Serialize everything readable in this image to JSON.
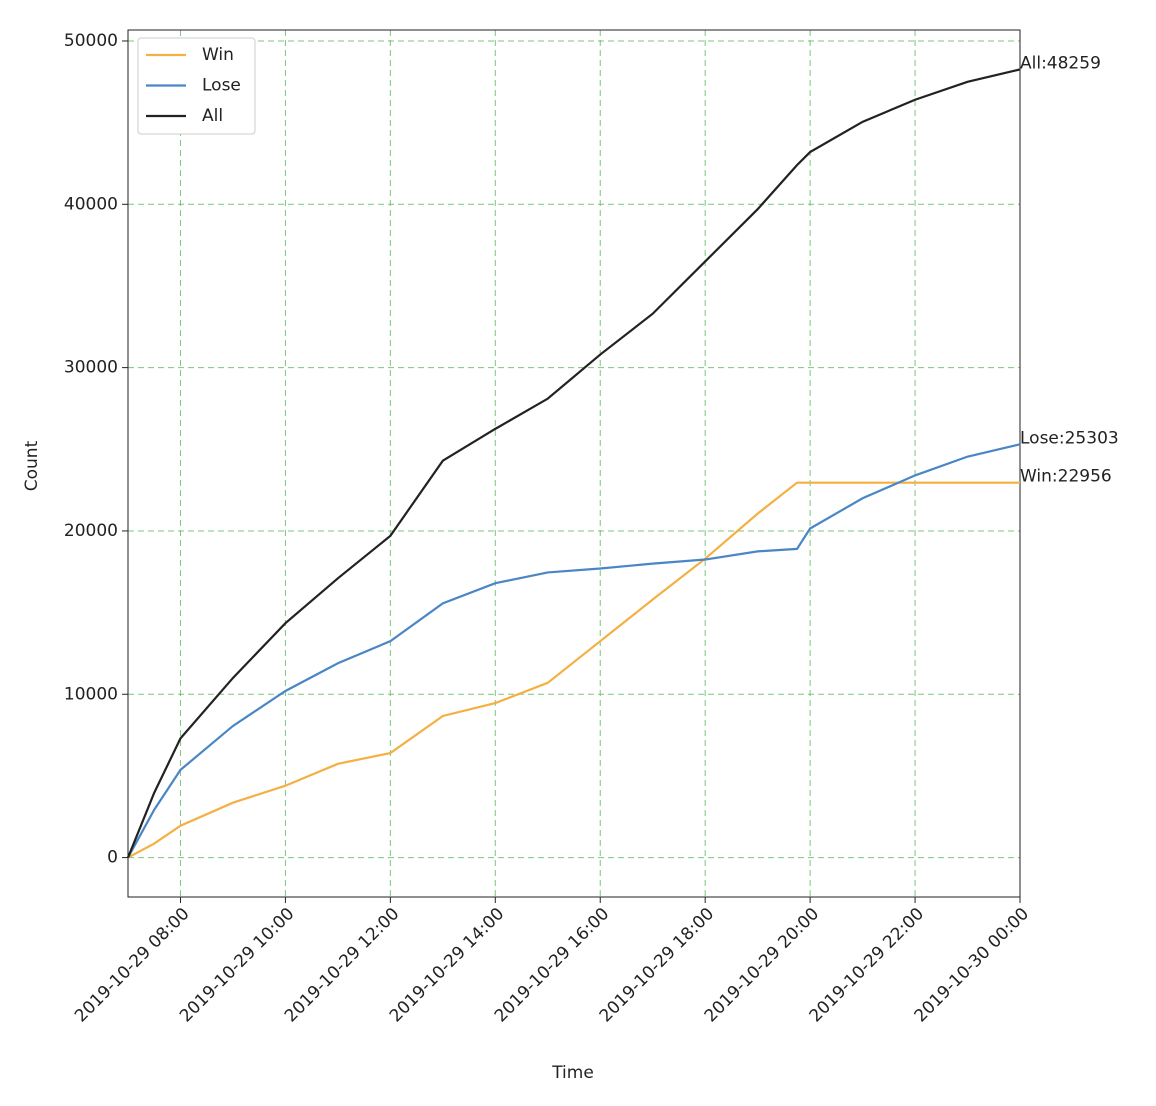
{
  "chart_data": {
    "type": "line",
    "x_label": "Time",
    "y_label": "Count",
    "x": [
      "2019-10-29 07:00",
      "2019-10-29 07:30",
      "2019-10-29 08:00",
      "2019-10-29 09:00",
      "2019-10-29 10:00",
      "2019-10-29 11:00",
      "2019-10-29 12:00",
      "2019-10-29 13:00",
      "2019-10-29 14:00",
      "2019-10-29 15:00",
      "2019-10-29 16:00",
      "2019-10-29 17:00",
      "2019-10-29 18:00",
      "2019-10-29 19:00",
      "2019-10-29 19:45",
      "2019-10-29 20:00",
      "2019-10-29 21:00",
      "2019-10-29 22:00",
      "2019-10-29 23:00",
      "2019-10-30 00:00"
    ],
    "series": [
      {
        "name": "Win",
        "color": "#f4b042",
        "values": [
          0,
          860,
          1950,
          3360,
          4400,
          5740,
          6400,
          8670,
          9460,
          10700,
          13250,
          15800,
          18300,
          21060,
          22956,
          22956,
          22956,
          22956,
          22956,
          22956
        ]
      },
      {
        "name": "Lose",
        "color": "#4a86c5",
        "values": [
          0,
          2930,
          5370,
          8060,
          10200,
          11900,
          13250,
          15570,
          16800,
          17460,
          17700,
          18000,
          18250,
          18750,
          18900,
          20150,
          22000,
          23400,
          24550,
          25303
        ]
      },
      {
        "name": "All",
        "color": "#222222",
        "values": [
          0,
          3970,
          7300,
          11000,
          14350,
          17100,
          19700,
          24300,
          26250,
          28100,
          30800,
          33300,
          36500,
          39700,
          42400,
          43200,
          45050,
          46400,
          47500,
          48259
        ]
      }
    ],
    "annotations": [
      "Win:22956",
      "Lose:25303",
      "All:48259"
    ],
    "annotation_color": "#f04a4a",
    "xlim": [
      "2019-10-29 07:00",
      "2019-10-30 00:00"
    ],
    "xticks": [
      "2019-10-29 08:00",
      "2019-10-29 10:00",
      "2019-10-29 12:00",
      "2019-10-29 14:00",
      "2019-10-29 16:00",
      "2019-10-29 18:00",
      "2019-10-29 20:00",
      "2019-10-29 22:00",
      "2019-10-30 00:00"
    ],
    "ylim": [
      -2413,
      50672
    ],
    "yticks": [
      0,
      10000,
      20000,
      30000,
      40000,
      50000
    ],
    "grid": true,
    "legend": "upper-left"
  }
}
